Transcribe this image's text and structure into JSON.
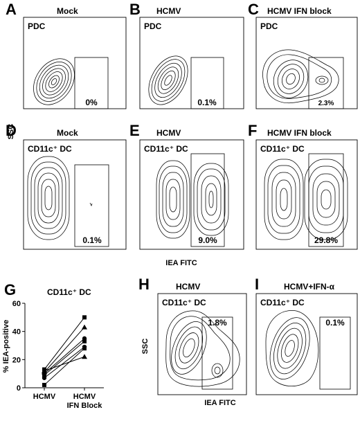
{
  "panels": [
    {
      "letter": "A",
      "title": "Mock",
      "cell": "PDC",
      "gate_pct": "0%"
    },
    {
      "letter": "B",
      "title": "HCMV",
      "cell": "PDC",
      "gate_pct": "0.1%"
    },
    {
      "letter": "C",
      "title": "HCMV IFN block",
      "cell": "PDC",
      "gate_pct": "2.3%"
    },
    {
      "letter": "D",
      "title": "Mock",
      "cell": "CD11c⁺ DC",
      "gate_pct": "0.1%"
    },
    {
      "letter": "E",
      "title": "HCMV",
      "cell": "CD11c⁺ DC",
      "gate_pct": "9.0%"
    },
    {
      "letter": "F",
      "title": "HCMV IFN block",
      "cell": "CD11c⁺ DC",
      "gate_pct": "29.8%"
    },
    {
      "letter": "H",
      "title": "HCMV",
      "cell": "CD11c⁺ DC",
      "gate_pct": "1.8%"
    },
    {
      "letter": "I",
      "title": "HCMV+IFN-α",
      "cell": "CD11c⁺ DC",
      "gate_pct": "0.1%"
    }
  ],
  "axes": {
    "top_ylabel": "SSC",
    "top_xlabel": "IEA FITC",
    "bottom_ylabel": "SSC",
    "bottom_xlabel": "IEA FITC"
  },
  "chart_data": {
    "type": "scatter",
    "letter": "G",
    "title": "CD11c⁺ DC",
    "ylabel": "% IEA-positive",
    "categories": [
      "HCMV",
      "HCMV\nIFN Block"
    ],
    "category_lines": [
      [
        "HCMV"
      ],
      [
        "HCMV",
        "IFN Block"
      ]
    ],
    "ylim": [
      0,
      60
    ],
    "yticks": [
      0,
      20,
      40,
      60
    ],
    "grid": false,
    "paired_series": [
      {
        "marker": "square",
        "values": [
          2,
          28
        ]
      },
      {
        "marker": "circle",
        "values": [
          7,
          29
        ]
      },
      {
        "marker": "square",
        "values": [
          9,
          33
        ]
      },
      {
        "marker": "triangle",
        "values": [
          11,
          43
        ]
      },
      {
        "marker": "square",
        "values": [
          13,
          50
        ]
      },
      {
        "marker": "triangle",
        "values": [
          12,
          22
        ]
      },
      {
        "marker": "circle",
        "values": [
          10,
          35
        ]
      }
    ]
  }
}
